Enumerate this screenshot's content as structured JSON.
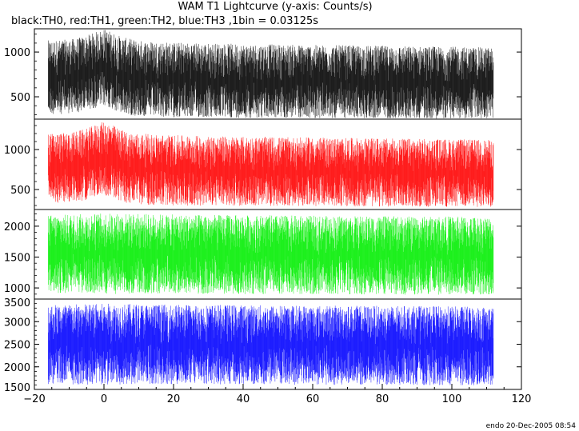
{
  "chart_data": {
    "type": "line",
    "title": "WAM T1 Lightcurve (y-axis: Counts/s)",
    "subtitle": "black:TH0, red:TH1, green:TH2, blue:TH3 ,1bin = 0.03125s",
    "footer": "endo 20-Dec-2005 08:54",
    "xlim": [
      -20,
      120
    ],
    "x_ticks": [
      -20,
      0,
      20,
      40,
      60,
      80,
      100,
      120
    ],
    "data_x_range": [
      -16,
      112
    ],
    "panels": [
      {
        "name": "TH0",
        "color": "#000000",
        "ylim": [
          250,
          1260
        ],
        "y_ticks": [
          500,
          1000
        ],
        "envelope": {
          "x": [
            -16,
            -10,
            -6,
            -4,
            -2,
            0,
            2,
            4,
            6,
            10,
            20,
            40,
            60,
            80,
            100,
            112
          ],
          "low": [
            300,
            310,
            330,
            360,
            380,
            390,
            370,
            320,
            300,
            280,
            270,
            265,
            260,
            260,
            255,
            255
          ],
          "high": [
            1130,
            1140,
            1170,
            1200,
            1230,
            1260,
            1230,
            1190,
            1160,
            1130,
            1110,
            1090,
            1080,
            1070,
            1060,
            1050
          ]
        }
      },
      {
        "name": "TH1",
        "color": "#ff0000",
        "ylim": [
          250,
          1380
        ],
        "y_ticks": [
          500,
          1000
        ],
        "envelope": {
          "x": [
            -16,
            -10,
            -6,
            -4,
            -2,
            0,
            2,
            4,
            6,
            10,
            20,
            40,
            60,
            80,
            100,
            112
          ],
          "low": [
            330,
            340,
            360,
            390,
            420,
            430,
            410,
            360,
            330,
            310,
            300,
            295,
            290,
            285,
            280,
            280
          ],
          "high": [
            1200,
            1210,
            1250,
            1280,
            1320,
            1350,
            1320,
            1270,
            1230,
            1200,
            1180,
            1160,
            1150,
            1140,
            1130,
            1120
          ]
        }
      },
      {
        "name": "TH2",
        "color": "#00ee00",
        "ylim": [
          820,
          2270
        ],
        "y_ticks": [
          1000,
          1500,
          2000
        ],
        "envelope": {
          "x": [
            -16,
            0,
            20,
            40,
            60,
            80,
            100,
            112
          ],
          "low": [
            920,
            900,
            910,
            900,
            900,
            890,
            890,
            890
          ],
          "high": [
            2180,
            2210,
            2190,
            2180,
            2170,
            2160,
            2160,
            2150
          ]
        }
      },
      {
        "name": "TH3",
        "color": "#0000ff",
        "ylim": [
          1500,
          3500
        ],
        "y_ticks": [
          1500,
          2000,
          2500,
          3000,
          3500
        ],
        "envelope": {
          "x": [
            -16,
            0,
            20,
            40,
            60,
            80,
            100,
            112
          ],
          "low": [
            1620,
            1600,
            1620,
            1610,
            1600,
            1600,
            1590,
            1590
          ],
          "high": [
            3380,
            3400,
            3380,
            3370,
            3360,
            3350,
            3340,
            3330
          ]
        }
      }
    ]
  }
}
